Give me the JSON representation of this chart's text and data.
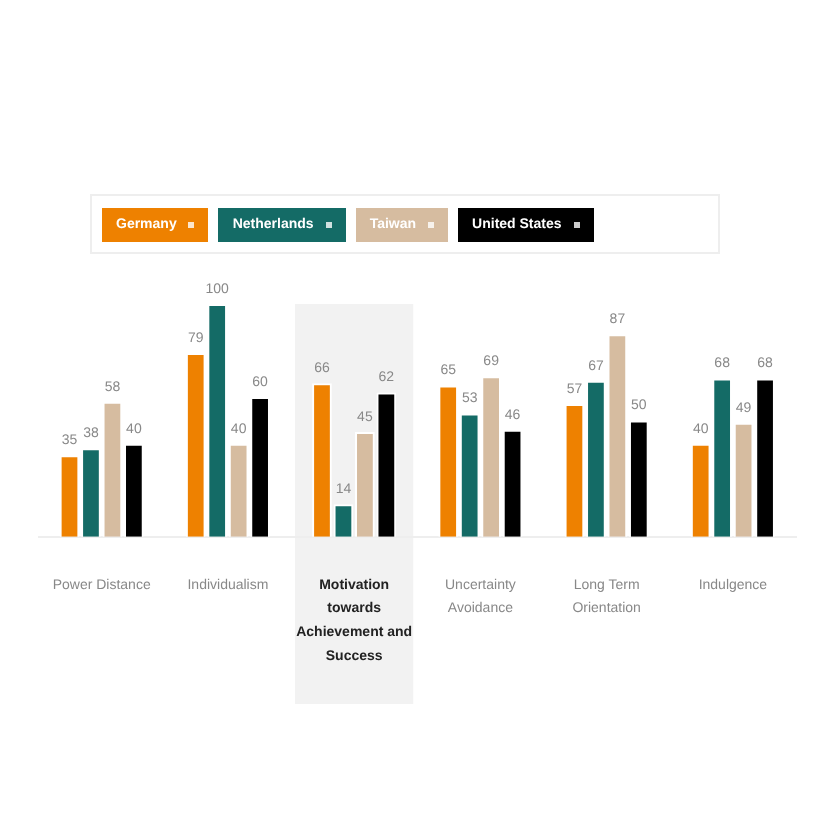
{
  "chart_data": {
    "type": "bar",
    "categories": [
      "Power Distance",
      "Individualism",
      "Motivation towards Achievement and Success",
      "Uncertainty Avoidance",
      "Long Term Orientation",
      "Indulgence"
    ],
    "series": [
      {
        "name": "Germany",
        "color": "#ee8100",
        "values": [
          35,
          79,
          66,
          65,
          57,
          40
        ]
      },
      {
        "name": "Netherlands",
        "color": "#146b66",
        "values": [
          38,
          100,
          14,
          53,
          67,
          68
        ]
      },
      {
        "name": "Taiwan",
        "color": "#d6bca0",
        "values": [
          58,
          40,
          45,
          69,
          87,
          49
        ]
      },
      {
        "name": "United States",
        "color": "#000000",
        "values": [
          40,
          60,
          62,
          46,
          50,
          68
        ]
      }
    ],
    "bands": [
      {
        "axis": "x",
        "from": "Motivation towards Achievement and Success",
        "to": "Motivation towards Achievement and Success",
        "color": "#f2f2f2"
      }
    ],
    "data_labels": true,
    "legend": "top",
    "grid": false,
    "tick_labels": "x"
  }
}
